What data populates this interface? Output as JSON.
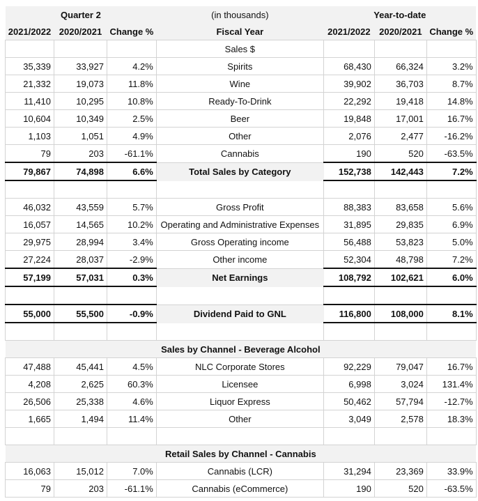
{
  "header": {
    "quarter_title": "Quarter 2",
    "units": "(in thousands)",
    "ytd_title": "Year-to-date",
    "col_cur": "2021/2022",
    "col_prev": "2020/2021",
    "col_change": "Change %",
    "fiscal_year": "Fiscal Year"
  },
  "rows": [
    {
      "type": "label",
      "label": "Sales $"
    },
    {
      "type": "data",
      "q_cur": "35,339",
      "q_prev": "33,927",
      "q_chg": "4.2%",
      "label": "Spirits",
      "y_cur": "68,430",
      "y_prev": "66,324",
      "y_chg": "3.2%"
    },
    {
      "type": "data",
      "q_cur": "21,332",
      "q_prev": "19,073",
      "q_chg": "11.8%",
      "label": "Wine",
      "y_cur": "39,902",
      "y_prev": "36,703",
      "y_chg": "8.7%"
    },
    {
      "type": "data",
      "q_cur": "11,410",
      "q_prev": "10,295",
      "q_chg": "10.8%",
      "label": "Ready-To-Drink",
      "y_cur": "22,292",
      "y_prev": "19,418",
      "y_chg": "14.8%"
    },
    {
      "type": "data",
      "q_cur": "10,604",
      "q_prev": "10,349",
      "q_chg": "2.5%",
      "label": "Beer",
      "y_cur": "19,848",
      "y_prev": "17,001",
      "y_chg": "16.7%"
    },
    {
      "type": "data",
      "q_cur": "1,103",
      "q_prev": "1,051",
      "q_chg": "4.9%",
      "label": "Other",
      "y_cur": "2,076",
      "y_prev": "2,477",
      "y_chg": "-16.2%"
    },
    {
      "type": "data",
      "q_cur": "79",
      "q_prev": "203",
      "q_chg": "-61.1%",
      "label": "Cannabis",
      "y_cur": "190",
      "y_prev": "520",
      "y_chg": "-63.5%"
    },
    {
      "type": "bold",
      "q_cur": "79,867",
      "q_prev": "74,898",
      "q_chg": "6.6%",
      "label": "Total Sales by Category",
      "y_cur": "152,738",
      "y_prev": "142,443",
      "y_chg": "7.2%"
    },
    {
      "type": "blank"
    },
    {
      "type": "data",
      "q_cur": "46,032",
      "q_prev": "43,559",
      "q_chg": "5.7%",
      "label": "Gross Profit",
      "y_cur": "88,383",
      "y_prev": "83,658",
      "y_chg": "5.6%"
    },
    {
      "type": "data",
      "q_cur": "16,057",
      "q_prev": "14,565",
      "q_chg": "10.2%",
      "label": "Operating and Administrative Expenses",
      "y_cur": "31,895",
      "y_prev": "29,835",
      "y_chg": "6.9%"
    },
    {
      "type": "data",
      "q_cur": "29,975",
      "q_prev": "28,994",
      "q_chg": "3.4%",
      "label": "Gross Operating income",
      "y_cur": "56,488",
      "y_prev": "53,823",
      "y_chg": "5.0%"
    },
    {
      "type": "data",
      "q_cur": "27,224",
      "q_prev": "28,037",
      "q_chg": "-2.9%",
      "label": "Other income",
      "y_cur": "52,304",
      "y_prev": "48,798",
      "y_chg": "7.2%"
    },
    {
      "type": "bold",
      "q_cur": "57,199",
      "q_prev": "57,031",
      "q_chg": "0.3%",
      "label": "Net Earnings",
      "y_cur": "108,792",
      "y_prev": "102,621",
      "y_chg": "6.0%"
    },
    {
      "type": "blank"
    },
    {
      "type": "bold",
      "q_cur": "55,000",
      "q_prev": "55,500",
      "q_chg": "-0.9%",
      "label": "Dividend Paid to GNL",
      "y_cur": "116,800",
      "y_prev": "108,000",
      "y_chg": "8.1%"
    },
    {
      "type": "blank"
    },
    {
      "type": "section",
      "label": "Sales by Channel - Beverage Alcohol"
    },
    {
      "type": "data",
      "q_cur": "47,488",
      "q_prev": "45,441",
      "q_chg": "4.5%",
      "label": "NLC Corporate Stores",
      "y_cur": "92,229",
      "y_prev": "79,047",
      "y_chg": "16.7%"
    },
    {
      "type": "data",
      "q_cur": "4,208",
      "q_prev": "2,625",
      "q_chg": "60.3%",
      "label": "Licensee",
      "y_cur": "6,998",
      "y_prev": "3,024",
      "y_chg": "131.4%"
    },
    {
      "type": "data",
      "q_cur": "26,506",
      "q_prev": "25,338",
      "q_chg": "4.6%",
      "label": "Liquor Express",
      "y_cur": "50,462",
      "y_prev": "57,794",
      "y_chg": "-12.7%"
    },
    {
      "type": "data",
      "q_cur": "1,665",
      "q_prev": "1,494",
      "q_chg": "11.4%",
      "label": "Other",
      "y_cur": "3,049",
      "y_prev": "2,578",
      "y_chg": "18.3%"
    },
    {
      "type": "blank"
    },
    {
      "type": "section",
      "label": "Retail Sales by Channel - Cannabis"
    },
    {
      "type": "data",
      "q_cur": "16,063",
      "q_prev": "15,012",
      "q_chg": "7.0%",
      "label": "Cannabis (LCR)",
      "y_cur": "31,294",
      "y_prev": "23,369",
      "y_chg": "33.9%"
    },
    {
      "type": "data",
      "q_cur": "79",
      "q_prev": "203",
      "q_chg": "-61.1%",
      "label": "Cannabis (eCommerce)",
      "y_cur": "190",
      "y_prev": "520",
      "y_chg": "-63.5%"
    }
  ]
}
